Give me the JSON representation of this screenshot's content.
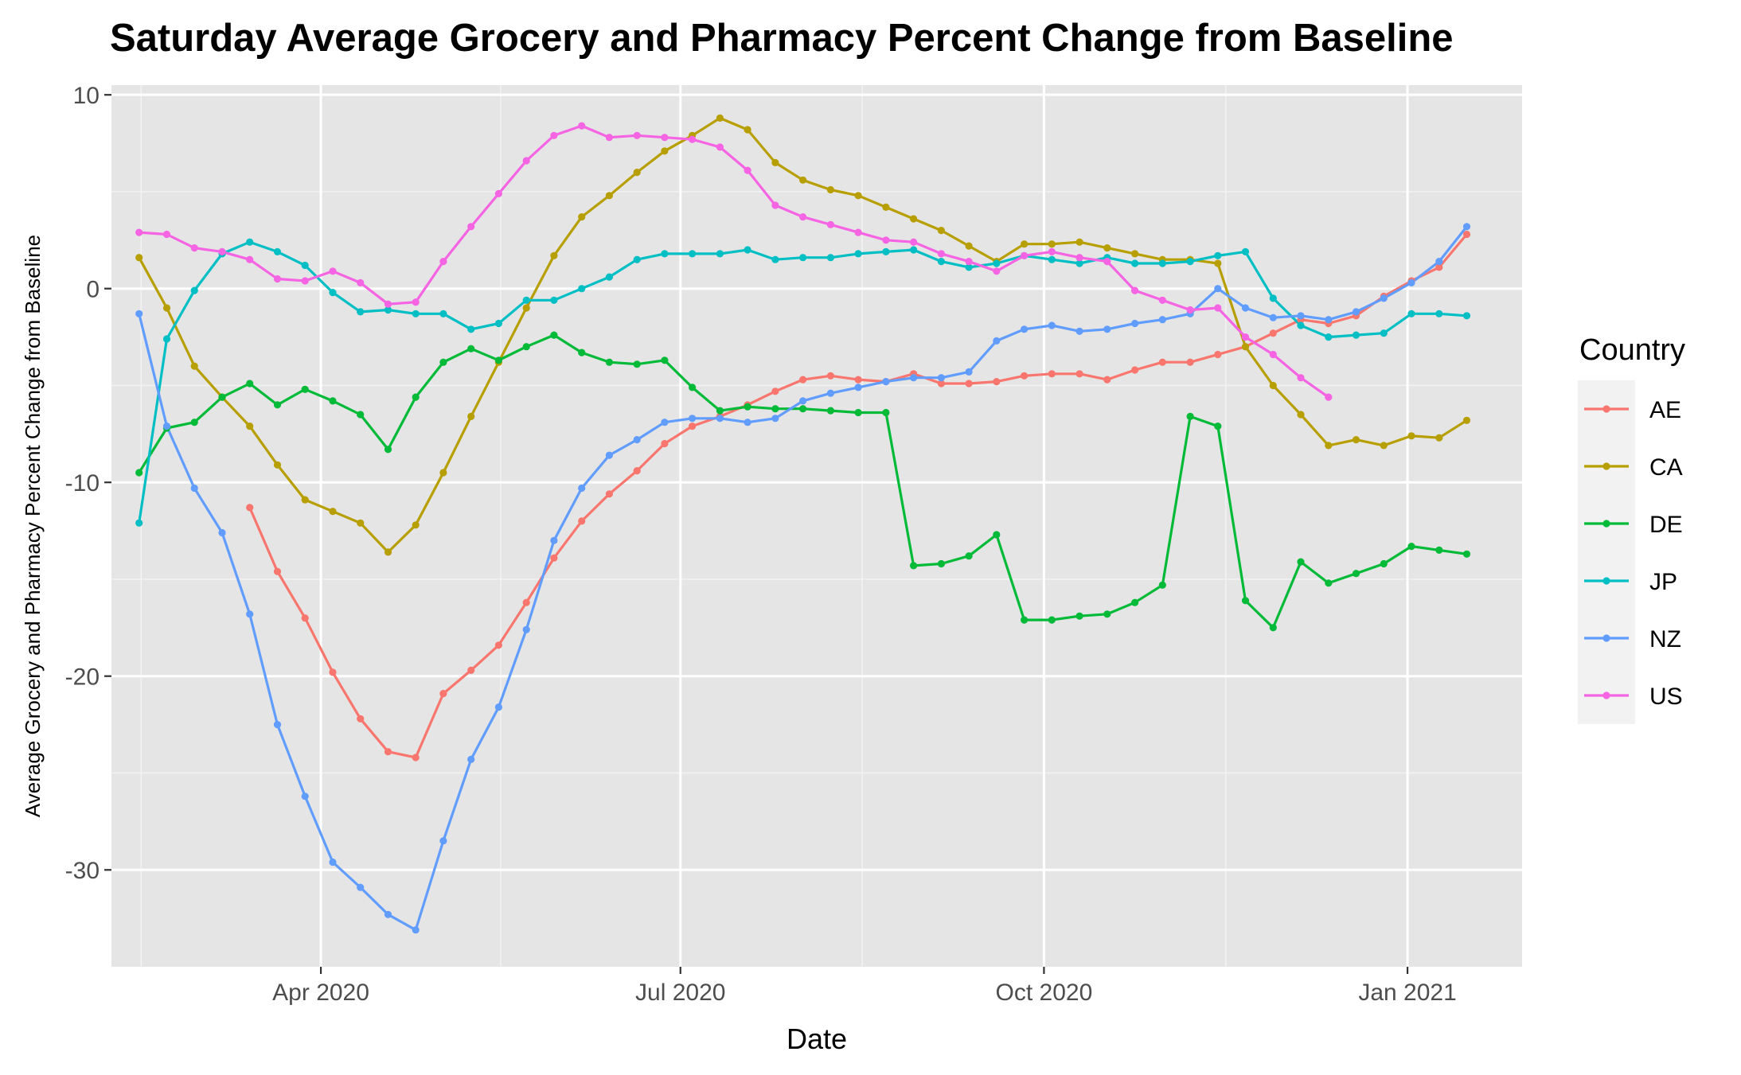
{
  "chart_data": {
    "type": "line",
    "title": "Saturday Average Grocery and Pharmacy Percent Change from Baseline",
    "xlabel": "Date",
    "ylabel": "Average Grocery and Pharmacy Percent Change from Baseline",
    "legend_title": "Country",
    "legend_position": "right",
    "grid": true,
    "xlim": [
      "2020-02-08",
      "2021-01-30"
    ],
    "ylim": [
      -35,
      10.5
    ],
    "x_ticks": [
      {
        "value": "2020-04-01",
        "label": "Apr 2020"
      },
      {
        "value": "2020-07-01",
        "label": "Jul 2020"
      },
      {
        "value": "2020-10-01",
        "label": "Oct 2020"
      },
      {
        "value": "2021-01-01",
        "label": "Jan 2021"
      }
    ],
    "y_ticks": [
      {
        "value": 10,
        "label": "10"
      },
      {
        "value": 0,
        "label": "0"
      },
      {
        "value": -10,
        "label": "-10"
      },
      {
        "value": -20,
        "label": "-20"
      },
      {
        "value": -30,
        "label": "-30"
      }
    ],
    "x": [
      "2020-02-15",
      "2020-02-22",
      "2020-02-29",
      "2020-03-07",
      "2020-03-14",
      "2020-03-21",
      "2020-03-28",
      "2020-04-04",
      "2020-04-11",
      "2020-04-18",
      "2020-04-25",
      "2020-05-02",
      "2020-05-09",
      "2020-05-16",
      "2020-05-23",
      "2020-05-30",
      "2020-06-06",
      "2020-06-13",
      "2020-06-20",
      "2020-06-27",
      "2020-07-04",
      "2020-07-11",
      "2020-07-18",
      "2020-07-25",
      "2020-08-01",
      "2020-08-08",
      "2020-08-15",
      "2020-08-22",
      "2020-08-29",
      "2020-09-05",
      "2020-09-12",
      "2020-09-19",
      "2020-09-26",
      "2020-10-03",
      "2020-10-10",
      "2020-10-17",
      "2020-10-24",
      "2020-10-31",
      "2020-11-07",
      "2020-11-14",
      "2020-11-21",
      "2020-11-28",
      "2020-12-05",
      "2020-12-12",
      "2020-12-19",
      "2020-12-26",
      "2021-01-02",
      "2021-01-09",
      "2021-01-16"
    ],
    "series": [
      {
        "name": "AE",
        "color": "#F8766D",
        "values": [
          null,
          null,
          null,
          null,
          -11.3,
          -14.6,
          -17.0,
          -19.8,
          -22.2,
          -23.9,
          -24.2,
          -20.9,
          -19.7,
          -18.4,
          -16.2,
          -13.9,
          -12.0,
          -10.6,
          -9.4,
          -8.0,
          -7.1,
          -6.6,
          -6.0,
          -5.3,
          -4.7,
          -4.5,
          -4.7,
          -4.8,
          -4.4,
          -4.9,
          -4.9,
          -4.8,
          -4.5,
          -4.4,
          -4.4,
          -4.7,
          -4.2,
          -3.8,
          -3.8,
          -3.4,
          -3.0,
          -2.3,
          -1.6,
          -1.8,
          -1.4,
          -0.4,
          0.4,
          1.1,
          2.8
        ]
      },
      {
        "name": "CA",
        "color": "#B79F00",
        "values": [
          1.6,
          -1.0,
          -4.0,
          -5.6,
          -7.1,
          -9.1,
          -10.9,
          -11.5,
          -12.1,
          -13.6,
          -12.2,
          -9.5,
          -6.6,
          -3.8,
          -1.0,
          1.7,
          3.7,
          4.8,
          6.0,
          7.1,
          7.9,
          8.8,
          8.2,
          6.5,
          5.6,
          5.1,
          4.8,
          4.2,
          3.6,
          3.0,
          2.2,
          1.4,
          2.3,
          2.3,
          2.4,
          2.1,
          1.8,
          1.5,
          1.5,
          1.3,
          -3.0,
          -5.0,
          -6.5,
          -8.1,
          -7.8,
          -8.1,
          -7.6,
          -7.7,
          -6.8
        ]
      },
      {
        "name": "DE",
        "color": "#00BA38",
        "values": [
          -9.5,
          -7.2,
          -6.9,
          -5.6,
          -4.9,
          -6.0,
          -5.2,
          -5.8,
          -6.5,
          -8.3,
          -5.6,
          -3.8,
          -3.1,
          -3.7,
          -3.0,
          -2.4,
          -3.3,
          -3.8,
          -3.9,
          -3.7,
          -5.1,
          -6.3,
          -6.1,
          -6.2,
          -6.2,
          -6.3,
          -6.4,
          -6.4,
          -14.3,
          -14.2,
          -13.8,
          -12.7,
          -17.1,
          -17.1,
          -16.9,
          -16.8,
          -16.2,
          -15.3,
          -6.6,
          -7.1,
          -16.1,
          -17.5,
          -14.1,
          -15.2,
          -14.7,
          -14.2,
          -13.3,
          -13.5,
          -13.7
        ]
      },
      {
        "name": "JP",
        "color": "#00BFC4",
        "values": [
          -12.1,
          -2.6,
          -0.1,
          1.8,
          2.4,
          1.9,
          1.2,
          -0.2,
          -1.2,
          -1.1,
          -1.3,
          -1.3,
          -2.1,
          -1.8,
          -0.6,
          -0.6,
          0.0,
          0.6,
          1.5,
          1.8,
          1.8,
          1.8,
          2.0,
          1.5,
          1.6,
          1.6,
          1.8,
          1.9,
          2.0,
          1.4,
          1.1,
          1.3,
          1.7,
          1.5,
          1.3,
          1.6,
          1.3,
          1.3,
          1.4,
          1.7,
          1.9,
          -0.5,
          -1.9,
          -2.5,
          -2.4,
          -2.3,
          -1.3,
          -1.3,
          -1.4
        ]
      },
      {
        "name": "NZ",
        "color": "#619CFF",
        "values": [
          -1.3,
          -7.1,
          -10.3,
          -12.6,
          -16.8,
          -22.5,
          -26.2,
          -29.6,
          -30.9,
          -32.3,
          -33.1,
          -28.5,
          -24.3,
          -21.6,
          -17.6,
          -13.0,
          -10.3,
          -8.6,
          -7.8,
          -6.9,
          -6.7,
          -6.7,
          -6.9,
          -6.7,
          -5.8,
          -5.4,
          -5.1,
          -4.8,
          -4.6,
          -4.6,
          -4.3,
          -2.7,
          -2.1,
          -1.9,
          -2.2,
          -2.1,
          -1.8,
          -1.6,
          -1.3,
          0.0,
          -1.0,
          -1.5,
          -1.4,
          -1.6,
          -1.2,
          -0.5,
          0.3,
          1.4,
          3.2
        ]
      },
      {
        "name": "US",
        "color": "#F564E3",
        "values": [
          2.9,
          2.8,
          2.1,
          1.9,
          1.5,
          0.5,
          0.4,
          0.9,
          0.3,
          -0.8,
          -0.7,
          1.4,
          3.2,
          4.9,
          6.6,
          7.9,
          8.4,
          7.8,
          7.9,
          7.8,
          7.7,
          7.3,
          6.1,
          4.3,
          3.7,
          3.3,
          2.9,
          2.5,
          2.4,
          1.8,
          1.4,
          0.9,
          1.7,
          1.9,
          1.6,
          1.4,
          -0.1,
          -0.6,
          -1.1,
          -1.0,
          -2.5,
          -3.4,
          -4.6,
          -5.6,
          null,
          null,
          null,
          null,
          null
        ]
      }
    ]
  }
}
